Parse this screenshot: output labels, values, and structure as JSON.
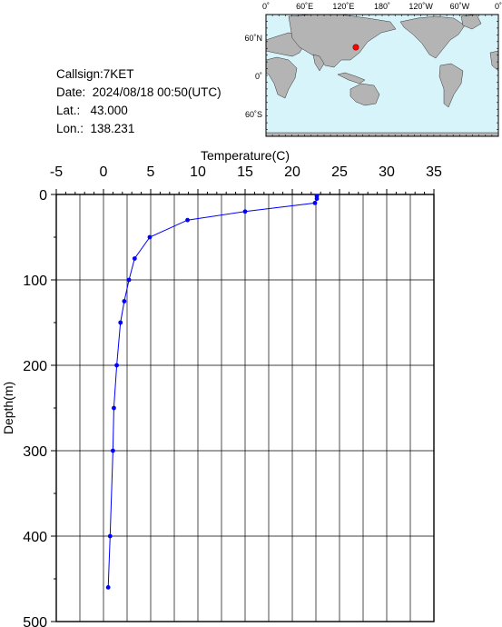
{
  "info": {
    "callsign": "Callsign:7KET",
    "date": "Date:  2024/08/18 00:50(UTC)",
    "lat": "Lat.:   43.000",
    "lon": "Lon.:  138.231"
  },
  "map": {
    "top_labels": [
      "0˚",
      "60˚E",
      "120˚E",
      "180˚",
      "120˚W",
      "60˚W",
      "0˚"
    ],
    "left_labels": [
      "60˚N",
      "0˚",
      "60˚S"
    ],
    "marker_color": "#ff0000",
    "ocean_color": "#d8f4fb",
    "land_color": "#b4b4b4"
  },
  "chart_data": {
    "type": "line",
    "xlabel": "Temperature(C)",
    "ylabel": "Depth(m)",
    "xlim": [
      -5,
      35
    ],
    "ylim": [
      0,
      500
    ],
    "y_inverted": true,
    "x_ticks": [
      "-5",
      "0",
      "5",
      "10",
      "15",
      "20",
      "25",
      "30",
      "35"
    ],
    "y_ticks": [
      "0",
      "100",
      "200",
      "300",
      "400",
      "500"
    ],
    "grid": true,
    "line_color": "#0000ff",
    "series": [
      {
        "points": [
          {
            "temp": 22.6,
            "depth": 2
          },
          {
            "temp": 22.6,
            "depth": 5
          },
          {
            "temp": 22.4,
            "depth": 10
          },
          {
            "temp": 15.0,
            "depth": 20
          },
          {
            "temp": 8.9,
            "depth": 30
          },
          {
            "temp": 4.9,
            "depth": 50
          },
          {
            "temp": 3.3,
            "depth": 75
          },
          {
            "temp": 2.7,
            "depth": 100
          },
          {
            "temp": 2.2,
            "depth": 125
          },
          {
            "temp": 1.8,
            "depth": 150
          },
          {
            "temp": 1.4,
            "depth": 200
          },
          {
            "temp": 1.1,
            "depth": 250
          },
          {
            "temp": 1.0,
            "depth": 300
          },
          {
            "temp": 0.7,
            "depth": 400
          },
          {
            "temp": 0.5,
            "depth": 460
          }
        ]
      }
    ]
  }
}
